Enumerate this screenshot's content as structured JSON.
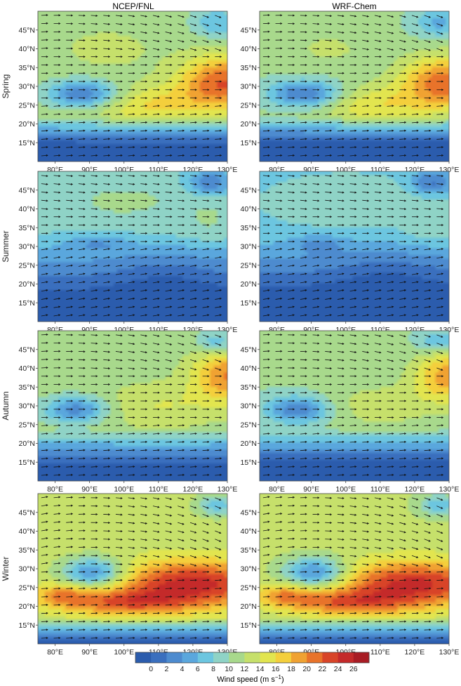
{
  "figure": {
    "column_titles": [
      "NCEP/FNL",
      "WRF-Chem"
    ],
    "row_titles": [
      "Spring",
      "Summer",
      "Autumn",
      "Winter"
    ],
    "colorbar": {
      "label": "Wind speed (m s",
      "label_sup": "−1",
      "label_close": ")",
      "ticks": [
        "0",
        "2",
        "4",
        "6",
        "8",
        "10",
        "12",
        "14",
        "16",
        "18",
        "20",
        "22",
        "24",
        "26"
      ],
      "colors": [
        "#2b5cad",
        "#3a6fbe",
        "#4d8bcf",
        "#5aa7dd",
        "#6cc6e0",
        "#8fd3c6",
        "#a8d98c",
        "#c6e06b",
        "#e2e54f",
        "#f4cf3c",
        "#f0a232",
        "#e8732a",
        "#d84428",
        "#c42a2a",
        "#a81c24"
      ]
    }
  },
  "chart_data": [
    {
      "type": "heatmap",
      "title": "NCEP/FNL",
      "season": "Spring",
      "xticks": [
        "80°E",
        "90°E",
        "100°E",
        "110°E",
        "120°E",
        "130°E"
      ],
      "yticks": [
        "15°N",
        "20°N",
        "25°N",
        "30°N",
        "35°N",
        "40°N",
        "45°N"
      ],
      "xlim": [
        75,
        130
      ],
      "ylim": [
        10,
        50
      ],
      "max_wind_speed": 26
    },
    {
      "type": "heatmap",
      "title": "WRF-Chem",
      "season": "Spring",
      "xticks": [
        "80°E",
        "90°E",
        "100°E",
        "110°E",
        "120°E",
        "130°E"
      ],
      "yticks": [
        "15°N",
        "20°N",
        "25°N",
        "30°N",
        "35°N",
        "40°N",
        "45°N"
      ],
      "xlim": [
        75,
        130
      ],
      "ylim": [
        10,
        50
      ],
      "max_wind_speed": 26
    },
    {
      "type": "heatmap",
      "title": "NCEP/FNL",
      "season": "Summer",
      "xticks": [
        "80°E",
        "90°E",
        "100°E",
        "110°E",
        "120°E",
        "130°E"
      ],
      "yticks": [
        "15°N",
        "20°N",
        "25°N",
        "30°N",
        "35°N",
        "40°N",
        "45°N"
      ],
      "xlim": [
        75,
        130
      ],
      "ylim": [
        10,
        50
      ],
      "max_wind_speed": 14
    },
    {
      "type": "heatmap",
      "title": "WRF-Chem",
      "season": "Summer",
      "xticks": [
        "80°E",
        "90°E",
        "100°E",
        "110°E",
        "120°E",
        "130°E"
      ],
      "yticks": [
        "15°N",
        "20°N",
        "25°N",
        "30°N",
        "35°N",
        "40°N",
        "45°N"
      ],
      "xlim": [
        75,
        130
      ],
      "ylim": [
        10,
        50
      ],
      "max_wind_speed": 14
    },
    {
      "type": "heatmap",
      "title": "NCEP/FNL",
      "season": "Autumn",
      "xticks": [
        "80°E",
        "90°E",
        "100°E",
        "110°E",
        "120°E",
        "130°E"
      ],
      "yticks": [
        "15°N",
        "20°N",
        "25°N",
        "30°N",
        "35°N",
        "40°N",
        "45°N"
      ],
      "xlim": [
        75,
        130
      ],
      "ylim": [
        10,
        50
      ],
      "max_wind_speed": 24
    },
    {
      "type": "heatmap",
      "title": "WRF-Chem",
      "season": "Autumn",
      "xticks": [
        "80°E",
        "90°E",
        "100°E",
        "110°E",
        "120°E",
        "130°E"
      ],
      "yticks": [
        "15°N",
        "20°N",
        "25°N",
        "30°N",
        "35°N",
        "40°N",
        "45°N"
      ],
      "xlim": [
        75,
        130
      ],
      "ylim": [
        10,
        50
      ],
      "max_wind_speed": 24
    },
    {
      "type": "heatmap",
      "title": "NCEP/FNL",
      "season": "Winter",
      "xticks": [
        "80°E",
        "90°E",
        "100°E",
        "110°E",
        "120°E",
        "130°E"
      ],
      "yticks": [
        "15°N",
        "20°N",
        "25°N",
        "30°N",
        "35°N",
        "40°N",
        "45°N"
      ],
      "xlim": [
        75,
        130
      ],
      "ylim": [
        10,
        50
      ],
      "max_wind_speed": 27
    },
    {
      "type": "heatmap",
      "title": "WRF-Chem",
      "season": "Winter",
      "xticks": [
        "80°E",
        "90°E",
        "100°E",
        "110°E",
        "120°E",
        "130°E"
      ],
      "yticks": [
        "15°N",
        "20°N",
        "25°N",
        "30°N",
        "35°N",
        "40°N",
        "45°N"
      ],
      "xlim": [
        75,
        130
      ],
      "ylim": [
        10,
        50
      ],
      "max_wind_speed": 27
    }
  ]
}
